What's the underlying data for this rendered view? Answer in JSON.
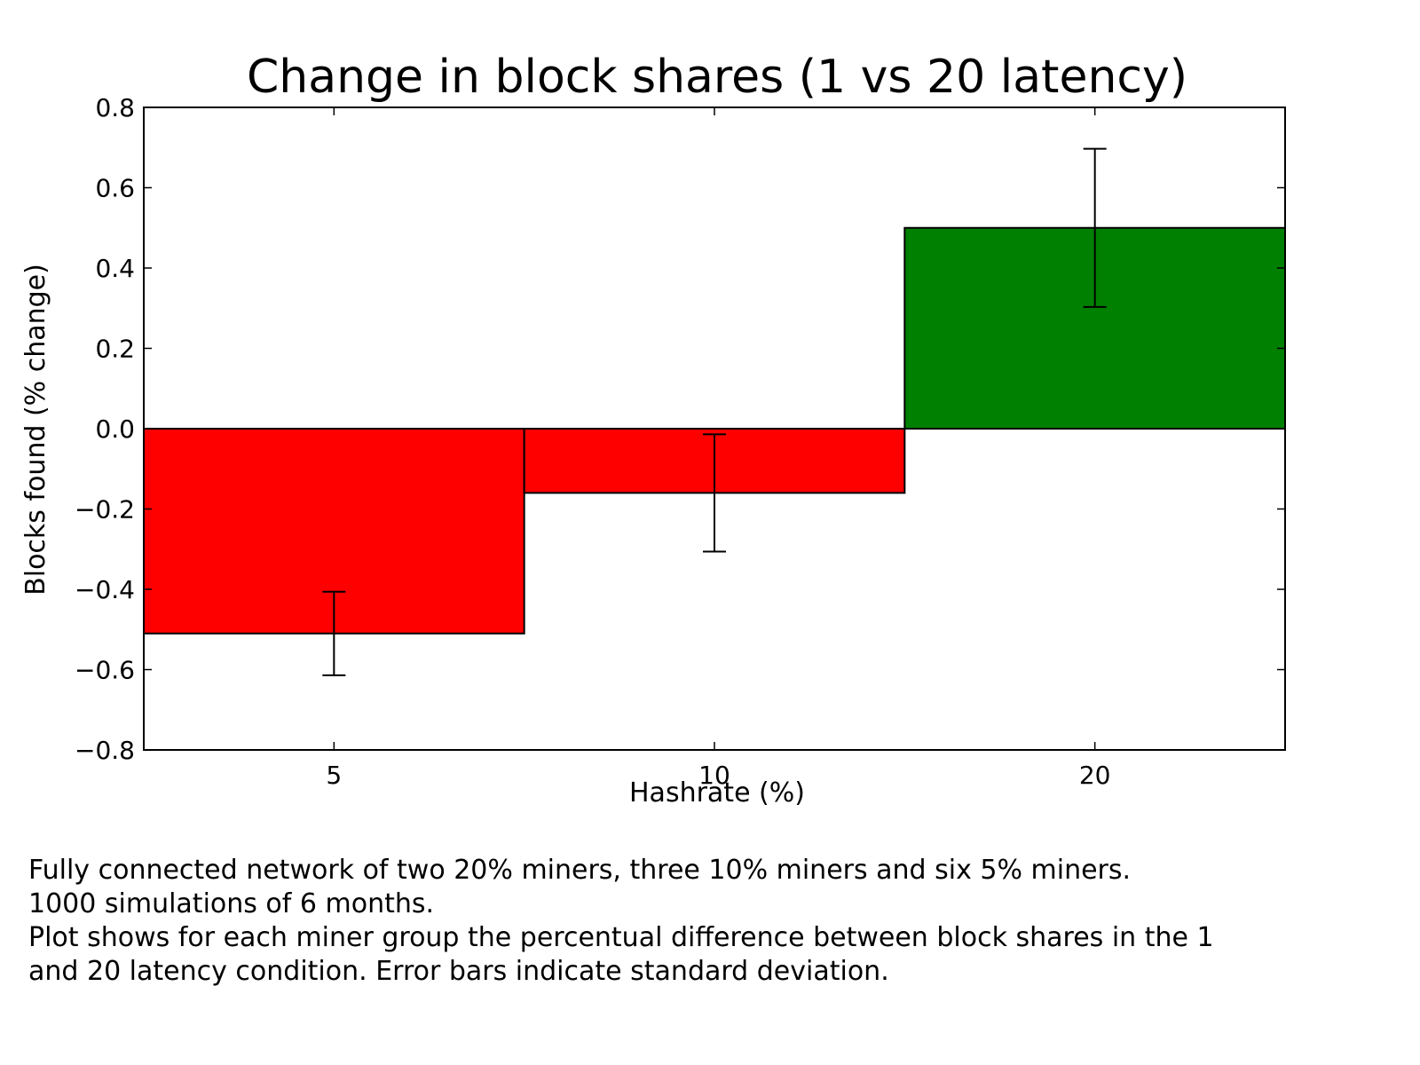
{
  "chart_data": {
    "type": "bar",
    "title": "Change in block shares (1 vs 20 latency)",
    "xlabel": "Hashrate (%)",
    "ylabel": "Blocks found (% change)",
    "categories": [
      "5",
      "10",
      "20"
    ],
    "values": [
      -0.51,
      -0.16,
      0.5
    ],
    "errors": [
      0.104,
      0.146,
      0.197
    ],
    "ylim": [
      -0.8,
      0.8
    ],
    "yticks": [
      0.8,
      0.6,
      0.4,
      0.2,
      0.0,
      -0.2,
      -0.4,
      -0.6,
      -0.8
    ],
    "ytick_labels": [
      "0.8",
      "0.6",
      "0.4",
      "0.2",
      "0.0",
      "−0.2",
      "−0.4",
      "−0.6",
      "−0.8"
    ],
    "grid": false,
    "colors": {
      "negative": "#ff0000",
      "positive": "#008000",
      "edge": "#000000"
    }
  },
  "caption": {
    "lines": [
      "Fully connected network of two 20% miners, three 10% miners and six 5% miners.",
      "1000 simulations of 6 months.",
      "Plot shows for each miner group the percentual difference between block shares in the 1",
      "and 20 latency condition. Error bars indicate standard deviation."
    ]
  }
}
